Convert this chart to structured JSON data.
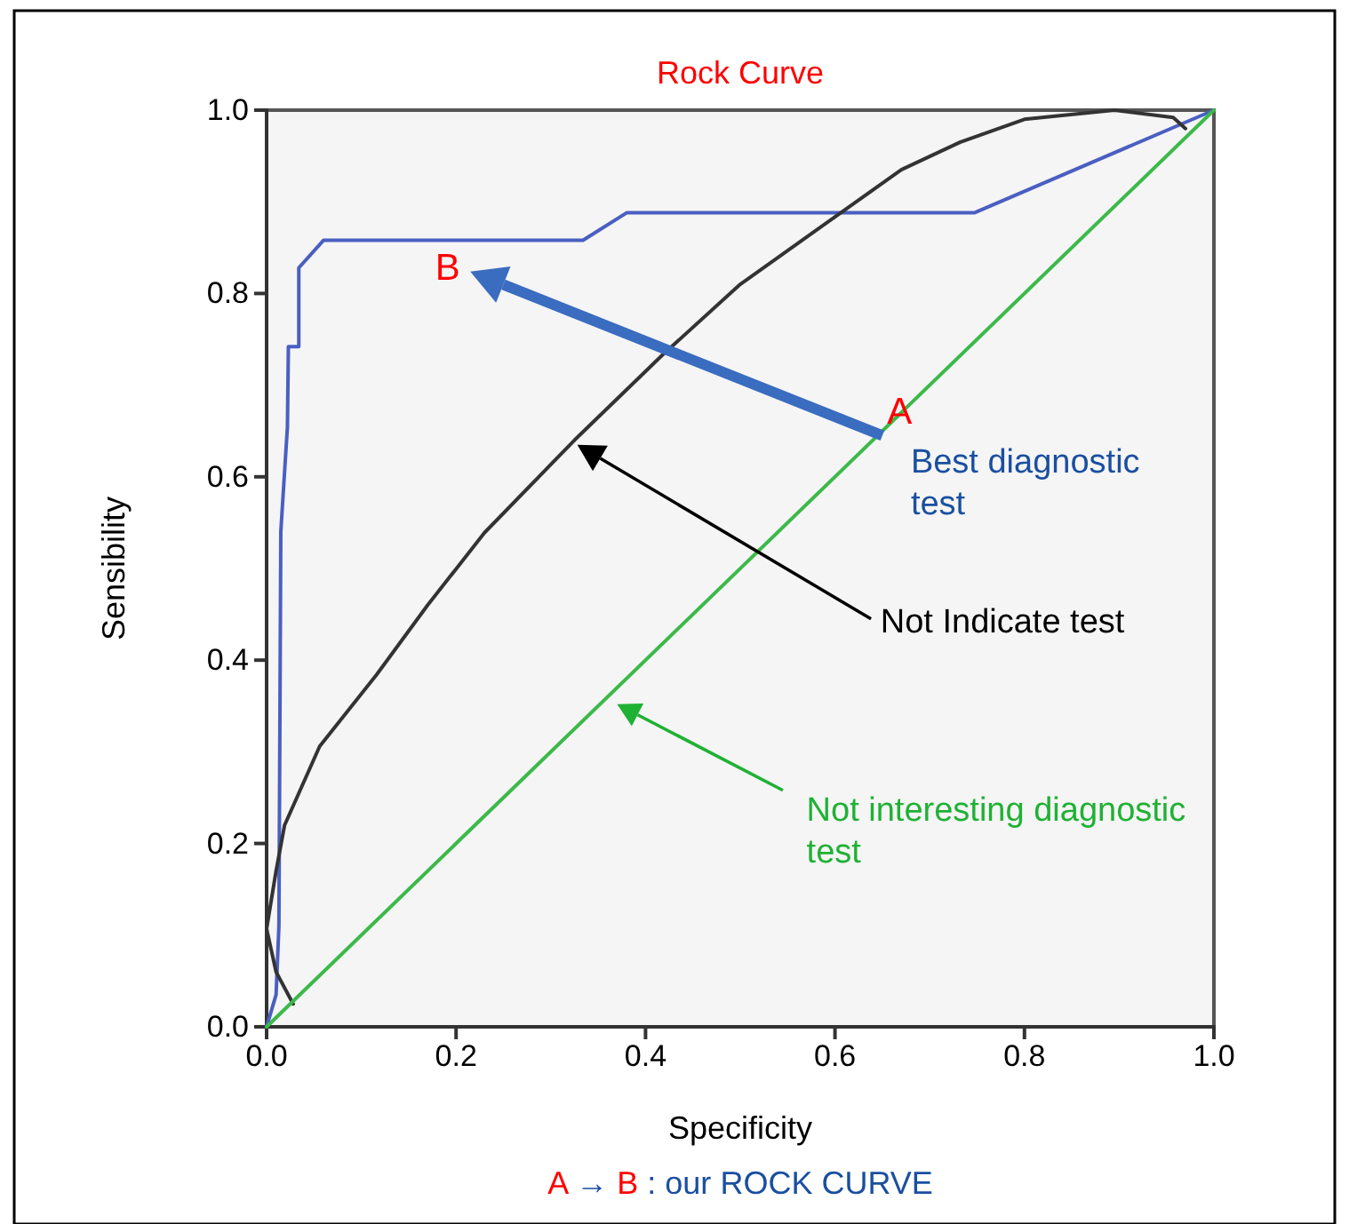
{
  "chart_data": {
    "type": "line",
    "title": "Rock Curve",
    "xlabel": "Specificity",
    "ylabel": "Sensibility",
    "xlim": [
      0,
      1
    ],
    "ylim": [
      0,
      1
    ],
    "xticks": [
      {
        "value": 0,
        "label": "0.0"
      },
      {
        "value": 0.2,
        "label": "0.2"
      },
      {
        "value": 0.4,
        "label": "0.4"
      },
      {
        "value": 0.6,
        "label": "0.6"
      },
      {
        "value": 0.8,
        "label": "0.8"
      },
      {
        "value": 1,
        "label": "1.0"
      }
    ],
    "yticks": [
      {
        "value": 0,
        "label": "0.0"
      },
      {
        "value": 0.2,
        "label": "0.2"
      },
      {
        "value": 0.4,
        "label": "0.4"
      },
      {
        "value": 0.6,
        "label": "0.6"
      },
      {
        "value": 0.8,
        "label": "0.8"
      },
      {
        "value": 1,
        "label": "1.0"
      }
    ],
    "grid": false,
    "marker": "none",
    "line_style": "solid",
    "series": [
      {
        "color": "#4a5fc1",
        "x": [
          0,
          0.01,
          0.013,
          0.015,
          0.022,
          0.023,
          0.034,
          0.034,
          0.06,
          0.334,
          0.38,
          0.747,
          1
        ],
        "values": [
          0,
          0.035,
          0.11,
          0.54,
          0.655,
          0.742,
          0.742,
          0.828,
          0.858,
          0.858,
          0.888,
          0.888,
          1
        ]
      },
      {
        "color": "#333333",
        "x": [
          0.028,
          0.01,
          0.0,
          0.01,
          0.019,
          0.056,
          0.116,
          0.17,
          0.23,
          0.325,
          0.418,
          0.5,
          0.606,
          0.67,
          0.732,
          0.8,
          0.895,
          0.957,
          0.97
        ],
        "values": [
          0.025,
          0.06,
          0.107,
          0.17,
          0.22,
          0.306,
          0.384,
          0.46,
          0.539,
          0.64,
          0.733,
          0.81,
          0.888,
          0.935,
          0.965,
          0.99,
          1.0,
          0.992,
          0.98
        ]
      },
      {
        "color": "#3cb94a",
        "x": [
          0,
          1
        ],
        "values": [
          0,
          1
        ]
      }
    ],
    "annotations": [
      "A",
      "B",
      "Best diagnostic test",
      "Not Indicate test",
      "Not interesting diagnostic test",
      "A → B : our ROCK CURVE"
    ]
  }
}
